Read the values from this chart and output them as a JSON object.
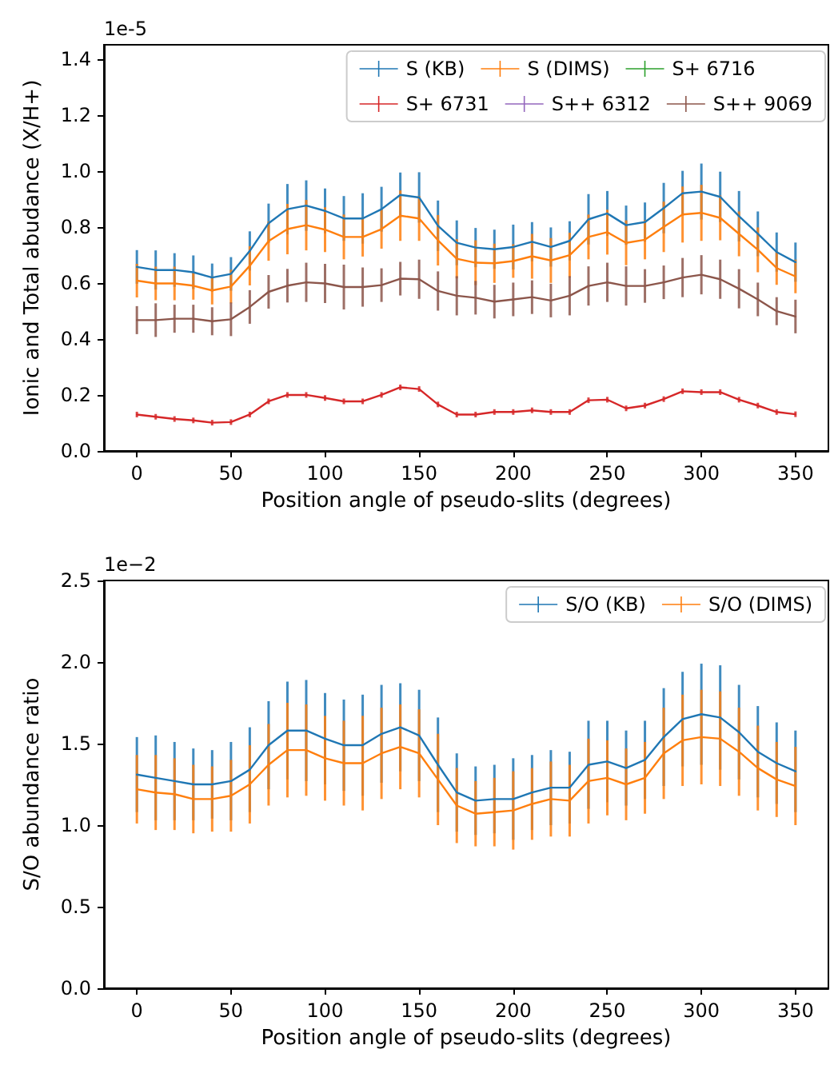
{
  "chart_data": [
    {
      "type": "line",
      "xlabel": "Position angle of pseudo-slits (degrees)",
      "ylabel": "Ionic and Total abudance (X/H+)",
      "annotations": [
        "1e-5"
      ],
      "x": [
        0,
        10,
        20,
        30,
        40,
        50,
        60,
        70,
        80,
        90,
        100,
        110,
        120,
        130,
        140,
        150,
        160,
        170,
        180,
        190,
        200,
        210,
        220,
        230,
        240,
        250,
        260,
        270,
        280,
        290,
        300,
        310,
        320,
        330,
        340,
        350
      ],
      "xlim": [
        -17.5,
        367.5
      ],
      "ylim": [
        0,
        1.45
      ],
      "xticks": [
        0,
        50,
        100,
        150,
        200,
        250,
        300,
        350
      ],
      "yticks": [
        {
          "value": 0,
          "label": "0.0"
        },
        0.2,
        0.4,
        0.6,
        0.8,
        {
          "value": 1,
          "label": "1.0"
        },
        1.2,
        1.4
      ],
      "legend": "top right",
      "grid": false,
      "marker": "none",
      "line_style": "solid",
      "series": [
        {
          "name": "S (KB)",
          "color": "#1f77b4",
          "values": [
            0.657,
            0.646,
            0.646,
            0.638,
            0.619,
            0.632,
            0.714,
            0.813,
            0.863,
            0.876,
            0.857,
            0.83,
            0.83,
            0.863,
            0.914,
            0.905,
            0.804,
            0.743,
            0.726,
            0.72,
            0.728,
            0.747,
            0.728,
            0.75,
            0.827,
            0.848,
            0.806,
            0.817,
            0.867,
            0.92,
            0.926,
            0.907,
            0.838,
            0.775,
            0.71,
            0.674
          ],
          "errors": [
            0.06,
            0.07,
            0.06,
            0.06,
            0.05,
            0.06,
            0.07,
            0.07,
            0.09,
            0.09,
            0.08,
            0.08,
            0.09,
            0.08,
            0.08,
            0.09,
            0.09,
            0.08,
            0.07,
            0.07,
            0.08,
            0.07,
            0.07,
            0.07,
            0.09,
            0.08,
            0.07,
            0.07,
            0.09,
            0.08,
            0.1,
            0.09,
            0.09,
            0.08,
            0.07,
            0.07
          ]
        },
        {
          "name": "S (DIMS)",
          "color": "#ff7f0e",
          "values": [
            0.608,
            0.598,
            0.598,
            0.59,
            0.573,
            0.587,
            0.661,
            0.749,
            0.792,
            0.806,
            0.79,
            0.764,
            0.764,
            0.792,
            0.84,
            0.83,
            0.752,
            0.686,
            0.672,
            0.67,
            0.678,
            0.695,
            0.68,
            0.699,
            0.764,
            0.781,
            0.743,
            0.754,
            0.8,
            0.844,
            0.85,
            0.832,
            0.775,
            0.718,
            0.653,
            0.623
          ],
          "errors": [
            0.06,
            0.06,
            0.06,
            0.05,
            0.05,
            0.06,
            0.07,
            0.07,
            0.09,
            0.09,
            0.08,
            0.08,
            0.07,
            0.07,
            0.09,
            0.08,
            0.09,
            0.07,
            0.08,
            0.07,
            0.06,
            0.08,
            0.08,
            0.08,
            0.08,
            0.08,
            0.08,
            0.07,
            0.09,
            0.1,
            0.1,
            0.08,
            0.08,
            0.08,
            0.06,
            0.06
          ]
        },
        {
          "name": "S+ 6716",
          "color": "#2ca02c",
          "values": [
            null,
            null,
            null,
            null,
            null,
            null,
            null,
            null,
            null,
            null,
            null,
            null,
            null,
            null,
            null,
            null,
            null,
            null,
            null,
            null,
            null,
            null,
            null,
            null,
            null,
            null,
            null,
            null,
            null,
            null,
            null,
            null,
            null,
            null,
            null,
            null
          ]
        },
        {
          "name": "S+ 6731",
          "color": "#d62728",
          "values": [
            0.13,
            0.122,
            0.114,
            0.109,
            0.101,
            0.103,
            0.13,
            0.177,
            0.2,
            0.2,
            0.189,
            0.177,
            0.177,
            0.2,
            0.227,
            0.221,
            0.166,
            0.13,
            0.13,
            0.139,
            0.139,
            0.145,
            0.139,
            0.139,
            0.181,
            0.183,
            0.152,
            0.162,
            0.185,
            0.213,
            0.21,
            0.21,
            0.183,
            0.162,
            0.139,
            0.131
          ],
          "errors": [
            0.01,
            0.01,
            0.01,
            0.01,
            0.01,
            0.01,
            0.01,
            0.01,
            0.01,
            0.01,
            0.01,
            0.01,
            0.01,
            0.01,
            0.01,
            0.01,
            0.01,
            0.01,
            0.01,
            0.01,
            0.01,
            0.01,
            0.01,
            0.01,
            0.01,
            0.01,
            0.01,
            0.01,
            0.01,
            0.01,
            0.01,
            0.01,
            0.01,
            0.01,
            0.01,
            0.01
          ]
        },
        {
          "name": "S++ 6312",
          "color": "#9467bd",
          "values": [
            null,
            null,
            null,
            null,
            null,
            null,
            null,
            null,
            null,
            null,
            null,
            null,
            null,
            null,
            null,
            null,
            null,
            null,
            null,
            null,
            null,
            null,
            null,
            null,
            null,
            null,
            null,
            null,
            null,
            null,
            null,
            null,
            null,
            null,
            null,
            null
          ]
        },
        {
          "name": "S++ 9069",
          "color": "#8c564b",
          "values": [
            0.467,
            0.467,
            0.472,
            0.472,
            0.463,
            0.47,
            0.514,
            0.568,
            0.59,
            0.602,
            0.598,
            0.585,
            0.585,
            0.592,
            0.615,
            0.613,
            0.571,
            0.554,
            0.547,
            0.533,
            0.541,
            0.549,
            0.537,
            0.554,
            0.589,
            0.602,
            0.589,
            0.589,
            0.602,
            0.619,
            0.629,
            0.613,
            0.579,
            0.541,
            0.499,
            0.48
          ],
          "errors": [
            0.05,
            0.06,
            0.05,
            0.05,
            0.05,
            0.06,
            0.06,
            0.06,
            0.06,
            0.07,
            0.07,
            0.08,
            0.07,
            0.06,
            0.06,
            0.07,
            0.07,
            0.07,
            0.06,
            0.06,
            0.06,
            0.06,
            0.06,
            0.07,
            0.07,
            0.07,
            0.07,
            0.06,
            0.06,
            0.07,
            0.07,
            0.07,
            0.07,
            0.06,
            0.05,
            0.06
          ]
        }
      ]
    },
    {
      "type": "line",
      "xlabel": "Position angle of pseudo-slits (degrees)",
      "ylabel": "S/O abundance ratio",
      "annotations": [
        "1e−2"
      ],
      "x": [
        0,
        10,
        20,
        30,
        40,
        50,
        60,
        70,
        80,
        90,
        100,
        110,
        120,
        130,
        140,
        150,
        160,
        170,
        180,
        190,
        200,
        210,
        220,
        230,
        240,
        250,
        260,
        270,
        280,
        290,
        300,
        310,
        320,
        330,
        340,
        350
      ],
      "xlim": [
        -17.5,
        367.5
      ],
      "ylim": [
        0,
        2.5
      ],
      "xticks": [
        0,
        50,
        100,
        150,
        200,
        250,
        300,
        350
      ],
      "yticks": [
        {
          "value": 0,
          "label": "0.0"
        },
        0.5,
        {
          "value": 1,
          "label": "1.0"
        },
        1.5,
        {
          "value": 2,
          "label": "2.0"
        },
        2.5
      ],
      "legend": "top right",
      "grid": false,
      "marker": "none",
      "line_style": "solid",
      "series": [
        {
          "name": "S/O (KB)",
          "color": "#1f77b4",
          "values": [
            1.31,
            1.29,
            1.27,
            1.25,
            1.25,
            1.27,
            1.34,
            1.49,
            1.58,
            1.58,
            1.53,
            1.49,
            1.49,
            1.56,
            1.6,
            1.55,
            1.37,
            1.2,
            1.15,
            1.16,
            1.16,
            1.2,
            1.23,
            1.23,
            1.37,
            1.39,
            1.35,
            1.4,
            1.54,
            1.65,
            1.68,
            1.66,
            1.57,
            1.45,
            1.38,
            1.33
          ],
          "errors": [
            0.23,
            0.26,
            0.24,
            0.22,
            0.21,
            0.24,
            0.26,
            0.27,
            0.3,
            0.31,
            0.28,
            0.28,
            0.31,
            0.3,
            0.27,
            0.28,
            0.29,
            0.24,
            0.21,
            0.21,
            0.25,
            0.23,
            0.23,
            0.22,
            0.27,
            0.25,
            0.23,
            0.24,
            0.3,
            0.29,
            0.31,
            0.32,
            0.29,
            0.28,
            0.25,
            0.25
          ]
        },
        {
          "name": "S/O (DIMS)",
          "color": "#ff7f0e",
          "values": [
            1.22,
            1.2,
            1.19,
            1.16,
            1.16,
            1.18,
            1.25,
            1.37,
            1.46,
            1.46,
            1.41,
            1.38,
            1.38,
            1.44,
            1.48,
            1.44,
            1.28,
            1.12,
            1.07,
            1.08,
            1.09,
            1.13,
            1.16,
            1.15,
            1.27,
            1.29,
            1.25,
            1.29,
            1.44,
            1.52,
            1.54,
            1.53,
            1.45,
            1.35,
            1.28,
            1.24
          ],
          "errors": [
            0.21,
            0.23,
            0.22,
            0.21,
            0.2,
            0.22,
            0.24,
            0.25,
            0.29,
            0.28,
            0.26,
            0.26,
            0.29,
            0.28,
            0.26,
            0.27,
            0.28,
            0.23,
            0.2,
            0.21,
            0.24,
            0.22,
            0.23,
            0.22,
            0.26,
            0.23,
            0.22,
            0.22,
            0.28,
            0.28,
            0.29,
            0.29,
            0.27,
            0.26,
            0.23,
            0.24
          ]
        }
      ]
    }
  ]
}
